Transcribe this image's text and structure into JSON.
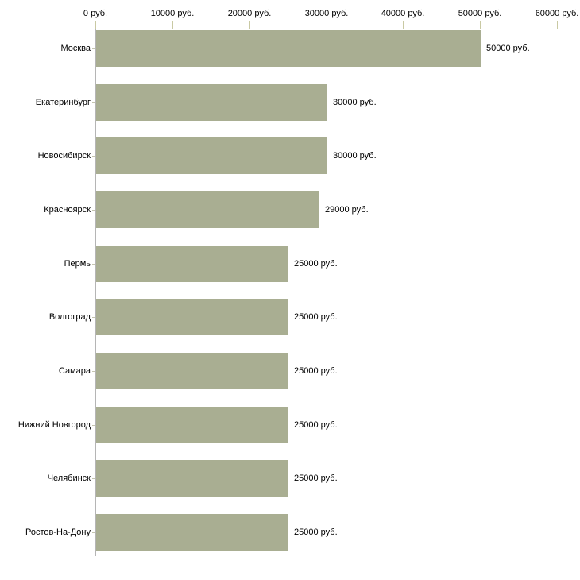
{
  "chart_data": {
    "type": "bar",
    "orientation": "horizontal",
    "title": "",
    "xlabel": "",
    "ylabel": "",
    "legend": "none",
    "grid": "off",
    "categories": [
      "Москва",
      "Екатеринбург",
      "Новосибирск",
      "Красноярск",
      "Пермь",
      "Волгоград",
      "Самара",
      "Нижний Новгород",
      "Челябинск",
      "Ростов-На-Дону"
    ],
    "values": [
      50000,
      30000,
      30000,
      29000,
      25000,
      25000,
      25000,
      25000,
      25000,
      25000
    ],
    "value_labels": [
      "50000 руб.",
      "30000 руб.",
      "30000 руб.",
      "29000 руб.",
      "25000 руб.",
      "25000 руб.",
      "25000 руб.",
      "25000 руб.",
      "25000 руб.",
      "25000 руб."
    ],
    "x_axis": {
      "position": "top",
      "range": [
        0,
        60000
      ],
      "ticks": [
        0,
        10000,
        20000,
        30000,
        40000,
        50000,
        60000
      ],
      "tick_labels": [
        "0 руб.",
        "10000 руб.",
        "20000 руб.",
        "30000 руб.",
        "40000 руб.",
        "50000 руб.",
        "60000 руб."
      ]
    },
    "colors": {
      "bar": "#a9ae92",
      "axis_line_h": "#c6c6b2",
      "axis_line_v": "#b5b5b5",
      "x_tick": "#c9c9a3",
      "y_tick": "#c5c5b0",
      "text": "#000000",
      "background": "#ffffff"
    }
  }
}
